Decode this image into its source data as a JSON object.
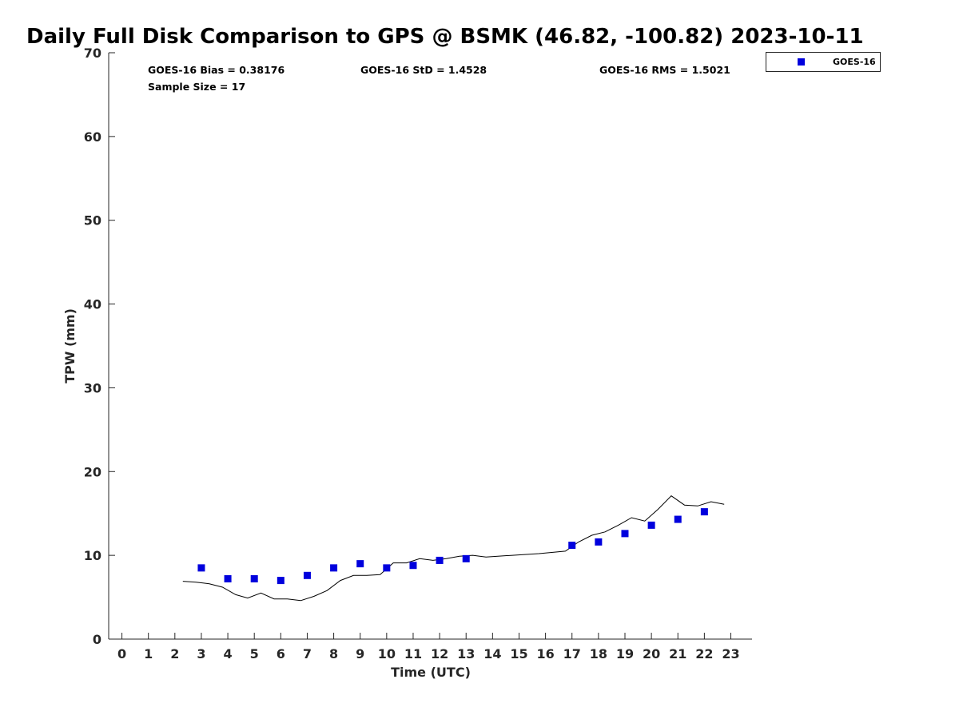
{
  "chart_data": {
    "type": "scatter",
    "title": "Daily Full Disk Comparison to GPS @ BSMK (46.82, -100.82) 2023-10-11",
    "xlabel": "Time (UTC)",
    "ylabel": "TPW (mm)",
    "xlim": [
      -0.5,
      23.8
    ],
    "ylim": [
      0,
      70
    ],
    "x_ticks": [
      0,
      1,
      2,
      3,
      4,
      5,
      6,
      7,
      8,
      9,
      10,
      11,
      12,
      13,
      14,
      15,
      16,
      17,
      18,
      19,
      20,
      21,
      22,
      23
    ],
    "x_tick_labels": [
      "0",
      "1",
      "2",
      "3",
      "4",
      "5",
      "6",
      "7",
      "8",
      "9",
      "10",
      "11",
      "12",
      "13",
      "14",
      "15",
      "16",
      "17",
      "18",
      "19",
      "20",
      "21",
      "22",
      "23"
    ],
    "y_ticks": [
      0,
      10,
      20,
      30,
      40,
      50,
      60,
      70
    ],
    "y_tick_labels": [
      "0",
      "10",
      "20",
      "30",
      "40",
      "50",
      "60",
      "70"
    ],
    "grid": false,
    "legend_position": "outside-top-right",
    "series": [
      {
        "name": "GOES-16",
        "kind": "scatter",
        "marker": "square",
        "color": "#0000dd",
        "x": [
          3,
          4,
          5,
          6,
          7,
          8,
          9,
          10,
          11,
          12,
          13,
          17,
          18,
          19,
          20,
          21,
          22
        ],
        "y": [
          8.5,
          7.2,
          7.2,
          7.0,
          7.6,
          8.5,
          9.0,
          8.5,
          8.8,
          9.4,
          9.6,
          11.2,
          11.6,
          12.6,
          13.6,
          14.3,
          15.2
        ]
      },
      {
        "kind": "line",
        "color": "#000000",
        "x": [
          2.3,
          2.8,
          3.3,
          3.8,
          4.3,
          4.75,
          5.25,
          5.75,
          6.25,
          6.75,
          7.25,
          7.75,
          8.25,
          8.75,
          9.25,
          9.75,
          10.25,
          10.75,
          11.25,
          11.75,
          12.25,
          12.75,
          13.25,
          13.75,
          14.75,
          15.75,
          16.75,
          17.25,
          17.75,
          18.25,
          18.75,
          19.25,
          19.75,
          20.25,
          20.75,
          21.25,
          21.75,
          22.25,
          22.75
        ],
        "y": [
          6.9,
          6.8,
          6.6,
          6.2,
          5.3,
          4.9,
          5.5,
          4.8,
          4.8,
          4.6,
          5.1,
          5.8,
          7.0,
          7.6,
          7.6,
          7.7,
          9.1,
          9.1,
          9.6,
          9.4,
          9.6,
          9.9,
          10.0,
          9.8,
          10.0,
          10.2,
          10.5,
          11.6,
          12.4,
          12.8,
          13.6,
          14.5,
          14.1,
          15.5,
          17.1,
          16.0,
          15.9,
          16.4,
          16.1
        ]
      }
    ],
    "annotations": {
      "bias": "GOES-16 Bias = 0.38176",
      "std": "GOES-16 StD = 1.4528",
      "rms": "GOES-16 RMS = 1.5021",
      "sample_size": "Sample Size = 17"
    },
    "legend": [
      "GOES-16"
    ]
  }
}
